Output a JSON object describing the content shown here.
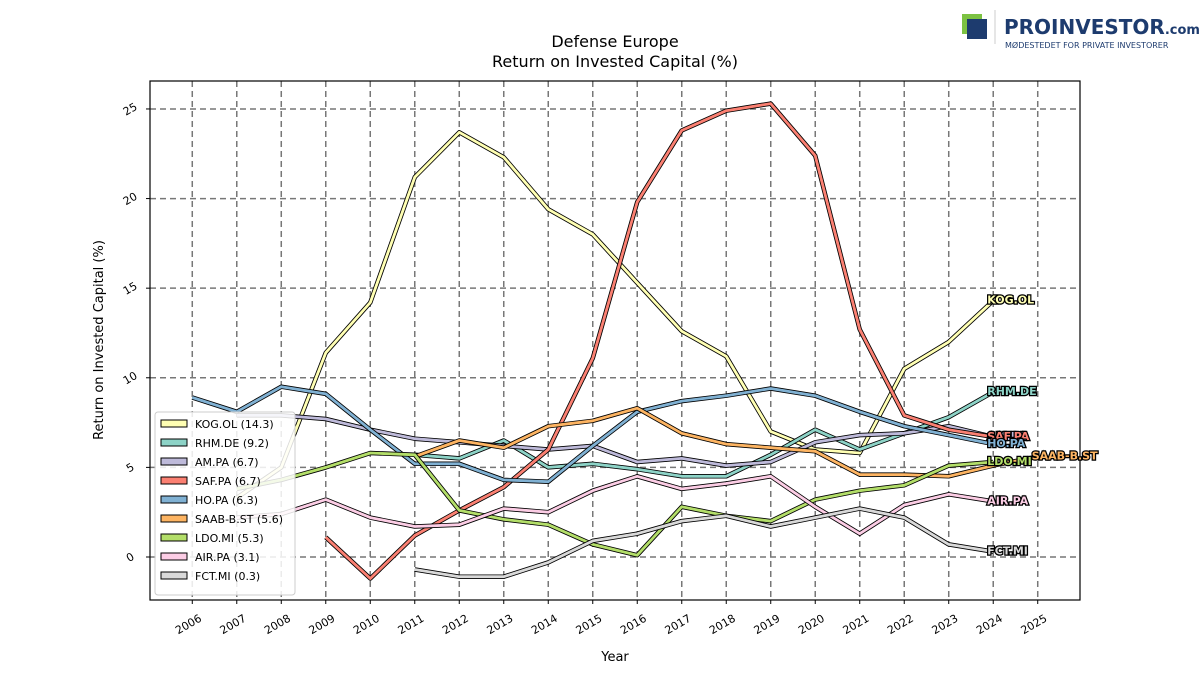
{
  "chart_data": {
    "type": "line",
    "title": "Defense Europe",
    "subtitle": "Return on Invested Capital (%)",
    "x_label": "Year",
    "y_label": "Return on Invested Capital (%)",
    "x": [
      2006,
      2007,
      2008,
      2009,
      2010,
      2011,
      2012,
      2013,
      2014,
      2015,
      2016,
      2017,
      2018,
      2019,
      2020,
      2021,
      2022,
      2023,
      2024,
      2025
    ],
    "xlim": [
      2005.05,
      2025.95
    ],
    "xticks": [
      2006,
      2007,
      2008,
      2009,
      2010,
      2011,
      2012,
      2013,
      2014,
      2015,
      2016,
      2017,
      2018,
      2019,
      2020,
      2021,
      2022,
      2023,
      2024,
      2025
    ],
    "ylim": [
      -2.4,
      26.56
    ],
    "yticks": [
      0,
      5,
      10,
      15,
      20,
      25
    ],
    "grid": true,
    "legend_position": "lower left",
    "series": [
      {
        "name": "KOG.OL",
        "legend_label": "KOG.OL (14.3)",
        "color": "#ffffb3",
        "values": [
          null,
          3.3,
          5.0,
          11.4,
          14.2,
          21.2,
          23.7,
          22.3,
          19.4,
          18.0,
          15.3,
          12.6,
          11.2,
          7.0,
          6.0,
          5.8,
          10.5,
          12.0,
          14.3,
          null
        ]
      },
      {
        "name": "RHM.DE",
        "legend_label": "RHM.DE (9.2)",
        "color": "#8dd3c7",
        "values": [
          null,
          null,
          null,
          null,
          null,
          5.7,
          5.5,
          6.5,
          5.0,
          5.2,
          4.9,
          4.5,
          4.5,
          5.7,
          7.1,
          6.0,
          6.9,
          7.8,
          9.2,
          null
        ]
      },
      {
        "name": "AM.PA",
        "legend_label": "AM.PA (6.7)",
        "color": "#bebada",
        "values": [
          null,
          7.9,
          7.9,
          7.7,
          7.1,
          6.6,
          6.4,
          6.2,
          6.0,
          6.2,
          5.3,
          5.5,
          5.1,
          5.3,
          6.4,
          6.8,
          6.9,
          7.3,
          6.7,
          null
        ]
      },
      {
        "name": "SAF.PA",
        "legend_label": "SAF.PA (6.7)",
        "color": "#fb8072",
        "values": [
          null,
          null,
          null,
          1.1,
          -1.2,
          1.2,
          2.6,
          3.9,
          6.0,
          11.1,
          19.8,
          23.8,
          24.9,
          25.3,
          22.4,
          12.7,
          7.9,
          7.1,
          6.7,
          null
        ]
      },
      {
        "name": "HO.PA",
        "legend_label": "HO.PA (6.3)",
        "color": "#80b1d3",
        "values": [
          8.9,
          8.1,
          9.5,
          9.1,
          7.1,
          5.2,
          5.2,
          4.3,
          4.2,
          6.2,
          8.1,
          8.7,
          9.0,
          9.4,
          9.0,
          8.1,
          7.3,
          6.8,
          6.3,
          null
        ]
      },
      {
        "name": "SAAB-B.ST",
        "legend_label": "SAAB-B.ST (5.6)",
        "color": "#fdb462",
        "values": [
          null,
          null,
          null,
          null,
          null,
          5.6,
          6.5,
          6.1,
          7.3,
          7.6,
          8.3,
          6.9,
          6.3,
          6.1,
          5.9,
          4.6,
          4.6,
          4.5,
          5.1,
          5.6
        ]
      },
      {
        "name": "LDO.MI",
        "legend_label": "LDO.MI (5.3)",
        "color": "#b3de69",
        "values": [
          null,
          3.8,
          4.3,
          5.0,
          5.8,
          5.7,
          2.6,
          2.1,
          1.8,
          0.7,
          0.1,
          2.8,
          2.3,
          2.0,
          3.2,
          3.7,
          4.0,
          5.1,
          5.3,
          null
        ]
      },
      {
        "name": "AIR.PA",
        "legend_label": "AIR.PA (3.1)",
        "color": "#fccde5",
        "values": [
          null,
          2.2,
          2.4,
          3.2,
          2.2,
          1.7,
          1.8,
          2.7,
          2.5,
          3.7,
          4.5,
          3.8,
          4.1,
          4.5,
          2.8,
          1.3,
          2.9,
          3.5,
          3.1,
          null
        ]
      },
      {
        "name": "FCT.MI",
        "legend_label": "FCT.MI (0.3)",
        "color": "#d9d9d9",
        "values": [
          null,
          null,
          null,
          null,
          null,
          -0.7,
          -1.1,
          -1.1,
          -0.3,
          0.9,
          1.3,
          2.0,
          2.3,
          1.7,
          2.2,
          2.7,
          2.2,
          0.7,
          0.3,
          null
        ]
      }
    ]
  },
  "branding": {
    "name": "PROINVESTOR",
    "suffix": ".com",
    "tagline": "MØDESTEDET FOR PRIVATE INVESTORER"
  }
}
